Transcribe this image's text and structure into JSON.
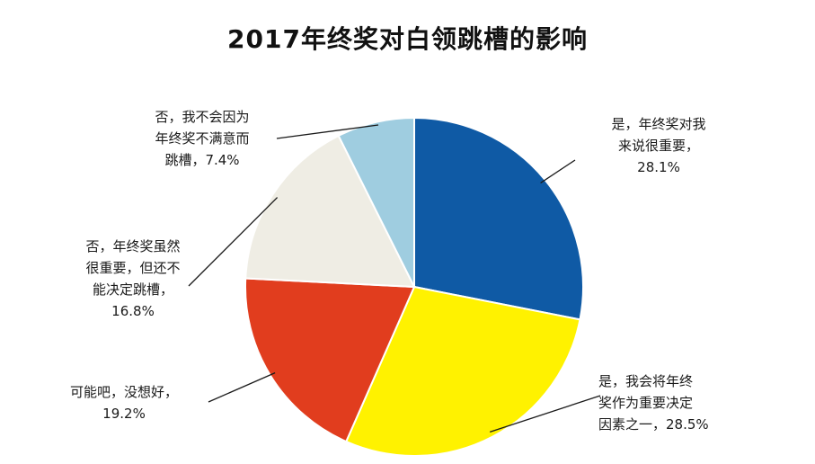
{
  "chart_data": {
    "type": "pie",
    "title": "2017年终奖对白领跳槽的影响",
    "slices": [
      {
        "name": "是，年终奖对我来说很重要",
        "value": 28.1,
        "color": "#0f5aa5",
        "label_lines": [
          "是，年终奖对我",
          "来说很重要，",
          "28.1%"
        ]
      },
      {
        "name": "是，我会将年终奖作为重要决定因素之一",
        "value": 28.5,
        "color": "#fff200",
        "label_lines": [
          "是，我会将年终",
          "奖作为重要决定",
          "因素之一，28.5%"
        ]
      },
      {
        "name": "可能吧，没想好",
        "value": 19.2,
        "color": "#e13d1e",
        "label_lines": [
          "可能吧，没想好，",
          "19.2%"
        ]
      },
      {
        "name": "否，年终奖虽然很重要，但还不能决定跳槽",
        "value": 16.8,
        "color": "#efede4",
        "label_lines": [
          "否，年终奖虽然",
          "很重要，但还不",
          "能决定跳槽，",
          "16.8%"
        ]
      },
      {
        "name": "否，我不会因为年终奖不满意而跳槽",
        "value": 7.4,
        "color": "#9fcde0",
        "label_lines": [
          "否，我不会因为",
          "年终奖不满意而",
          "跳槽，7.4%"
        ]
      }
    ]
  }
}
